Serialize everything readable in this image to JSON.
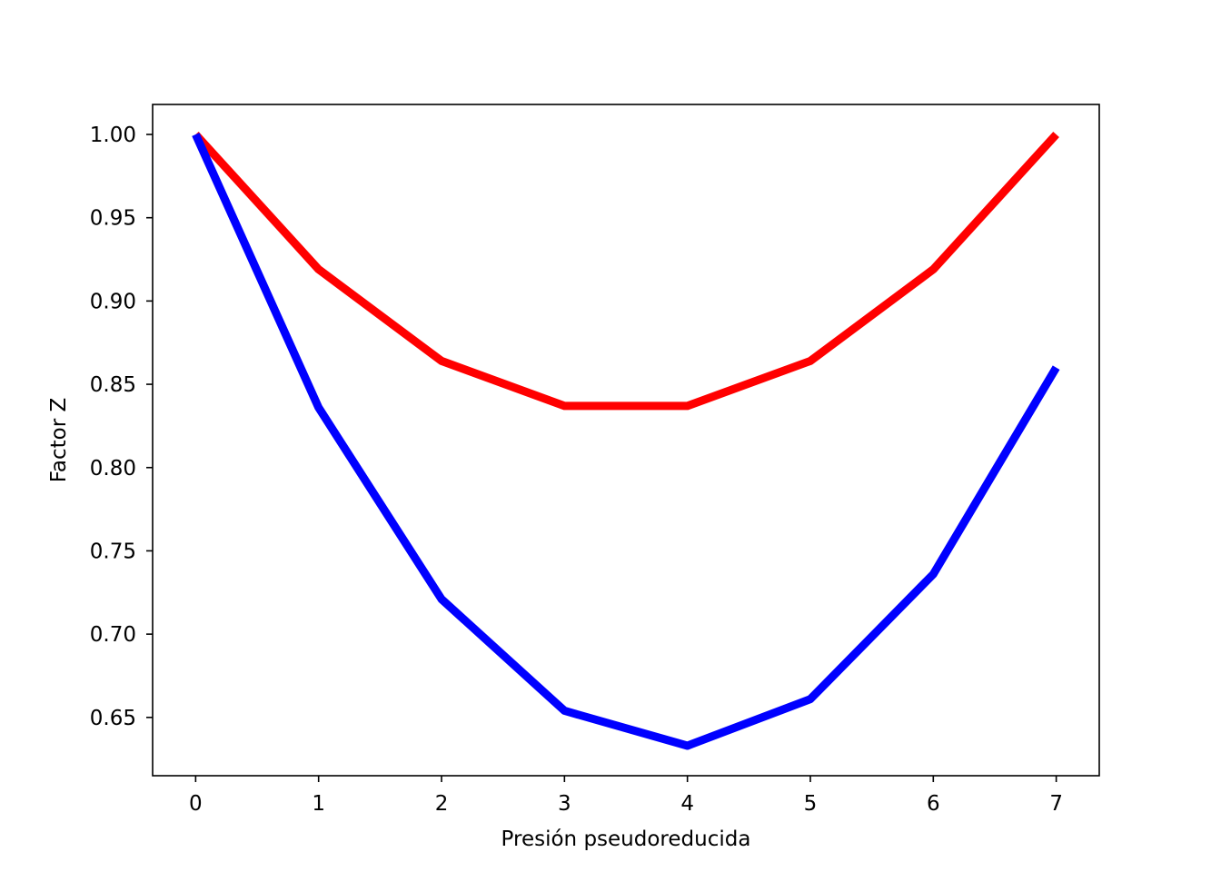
{
  "chart_data": {
    "type": "line",
    "title": "",
    "xlabel": "Presión pseudoreducida",
    "ylabel": "Factor Z",
    "x": [
      0,
      1,
      2,
      3,
      4,
      5,
      6,
      7
    ],
    "xlim": [
      -0.35,
      7.35
    ],
    "ylim": [
      0.615,
      1.018
    ],
    "xticks": [
      0,
      1,
      2,
      3,
      4,
      5,
      6,
      7
    ],
    "yticks": [
      0.65,
      0.7,
      0.75,
      0.8,
      0.85,
      0.9,
      0.95,
      1.0
    ],
    "ytick_labels": [
      "0.65",
      "0.70",
      "0.75",
      "0.80",
      "0.85",
      "0.90",
      "0.95",
      "1.00"
    ],
    "grid": false,
    "legend": "none",
    "series": [
      {
        "color": "#ff0000",
        "values": [
          1.0,
          0.919,
          0.864,
          0.837,
          0.837,
          0.864,
          0.919,
          1.0
        ]
      },
      {
        "color": "#0000ff",
        "values": [
          1.0,
          0.836,
          0.721,
          0.654,
          0.633,
          0.661,
          0.736,
          0.86
        ]
      }
    ]
  }
}
